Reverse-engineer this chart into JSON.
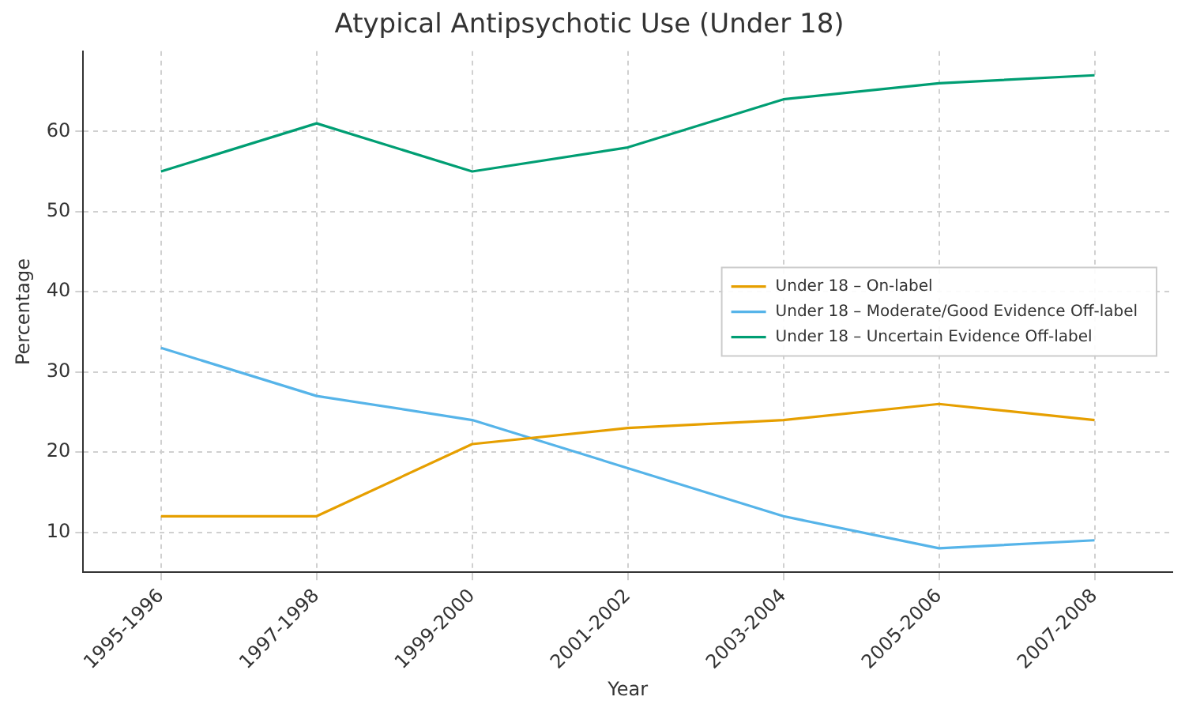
{
  "chart_data": {
    "type": "line",
    "title": "Atypical Antipsychotic Use (Under 18)",
    "xlabel": "Year",
    "ylabel": "Percentage",
    "categories": [
      "1995-1996",
      "1997-1998",
      "1999-2000",
      "2001-2002",
      "2003-2004",
      "2005-2006",
      "2007-2008"
    ],
    "series": [
      {
        "name": "Under 18 – On-label",
        "color": "#e69f00",
        "values": [
          12,
          12,
          21,
          23,
          24,
          26,
          24
        ]
      },
      {
        "name": "Under 18 – Moderate/Good Evidence Off-label",
        "color": "#56b4e9",
        "values": [
          33,
          27,
          24,
          18,
          12,
          8,
          9
        ]
      },
      {
        "name": "Under 18 – Uncertain Evidence Off-label",
        "color": "#009e73",
        "values": [
          55,
          61,
          55,
          58,
          64,
          66,
          67
        ]
      }
    ],
    "ylim": [
      5,
      70
    ],
    "yticks": [
      10,
      20,
      30,
      40,
      50,
      60
    ],
    "grid": true,
    "legend": "right",
    "marker": "none",
    "line_style": "solid"
  }
}
